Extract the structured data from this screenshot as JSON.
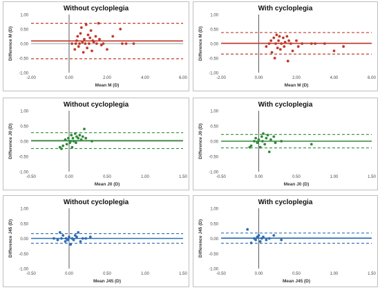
{
  "chart_data": [
    {
      "type": "scatter",
      "title": "Without cycloplegia",
      "xlabel": "Mean M (D)",
      "ylabel": "Difference M (D)",
      "xlim": [
        -2,
        6
      ],
      "ylim": [
        -1,
        1
      ],
      "xticks": [
        "-2.00",
        "0.00",
        "2.00",
        "4.00",
        "6.00"
      ],
      "yticks": [
        "-1.00",
        "-0.50",
        "0.00",
        "0.50",
        "1.00"
      ],
      "color": "#c0392b",
      "mean_diff": 0.09,
      "lower_loa": -0.52,
      "upper_loa": 0.7,
      "grid": false,
      "points": [
        [
          0.15,
          0.0
        ],
        [
          0.3,
          -0.2
        ],
        [
          0.35,
          0.0
        ],
        [
          0.4,
          0.1
        ],
        [
          0.45,
          0.25
        ],
        [
          0.5,
          -0.1
        ],
        [
          0.55,
          0.0
        ],
        [
          0.6,
          0.35
        ],
        [
          0.65,
          0.55
        ],
        [
          0.7,
          0.05
        ],
        [
          0.75,
          -0.3
        ],
        [
          0.8,
          0.15
        ],
        [
          0.85,
          0.0
        ],
        [
          0.9,
          0.65
        ],
        [
          0.95,
          -0.15
        ],
        [
          1.0,
          0.3
        ],
        [
          1.05,
          0.0
        ],
        [
          1.1,
          0.2
        ],
        [
          1.15,
          0.45
        ],
        [
          1.2,
          -0.25
        ],
        [
          1.25,
          0.1
        ],
        [
          1.3,
          0.05
        ],
        [
          1.4,
          0.25
        ],
        [
          1.45,
          0.0
        ],
        [
          1.55,
          0.7
        ],
        [
          1.6,
          0.15
        ],
        [
          1.7,
          -0.05
        ],
        [
          1.8,
          0.0
        ],
        [
          2.0,
          -0.2
        ],
        [
          2.3,
          0.25
        ],
        [
          2.7,
          0.5
        ],
        [
          2.8,
          0.0
        ],
        [
          3.0,
          0.0
        ],
        [
          3.4,
          0.0
        ]
      ]
    },
    {
      "type": "scatter",
      "title": "With cycloplegia",
      "xlabel": "Mean M (D)",
      "ylabel": "Difference M (D)",
      "xlim": [
        -2,
        6
      ],
      "ylim": [
        -1,
        1
      ],
      "xticks": [
        "-2.00",
        "0.00",
        "2.00",
        "4.00",
        "6.00"
      ],
      "yticks": [
        "-1.00",
        "-0.50",
        "0.00",
        "0.50",
        "1.00"
      ],
      "color": "#c0392b",
      "mean_diff": 0.01,
      "lower_loa": -0.36,
      "upper_loa": 0.38,
      "grid": false,
      "points": [
        [
          0.4,
          -0.1
        ],
        [
          0.55,
          0.0
        ],
        [
          0.65,
          0.1
        ],
        [
          0.7,
          -0.3
        ],
        [
          0.8,
          0.2
        ],
        [
          0.85,
          -0.5
        ],
        [
          0.9,
          0.0
        ],
        [
          0.95,
          0.3
        ],
        [
          1.0,
          -0.15
        ],
        [
          1.05,
          0.1
        ],
        [
          1.1,
          0.25
        ],
        [
          1.15,
          -0.2
        ],
        [
          1.2,
          0.0
        ],
        [
          1.3,
          0.2
        ],
        [
          1.35,
          -0.1
        ],
        [
          1.4,
          0.05
        ],
        [
          1.5,
          0.25
        ],
        [
          1.55,
          -0.6
        ],
        [
          1.6,
          0.1
        ],
        [
          1.7,
          0.0
        ],
        [
          1.8,
          -0.25
        ],
        [
          2.0,
          0.1
        ],
        [
          2.1,
          -0.1
        ],
        [
          2.3,
          0.0
        ],
        [
          2.8,
          0.0
        ],
        [
          3.0,
          0.0
        ],
        [
          3.5,
          0.0
        ],
        [
          4.0,
          -0.25
        ],
        [
          4.5,
          -0.1
        ]
      ]
    },
    {
      "type": "scatter",
      "title": "Without cycloplegia",
      "xlabel": "Mean J0 (D)",
      "ylabel": "Difference J0 (D)",
      "xlim": [
        -0.5,
        1.5
      ],
      "ylim": [
        -1,
        1
      ],
      "xticks": [
        "-0.50",
        "0.00",
        "0.50",
        "1.00",
        "1.50"
      ],
      "yticks": [
        "-1.00",
        "-0.50",
        "0.00",
        "0.50",
        "1.00"
      ],
      "color": "#2e8b3a",
      "mean_diff": 0.02,
      "lower_loa": -0.24,
      "upper_loa": 0.28,
      "grid": false,
      "points": [
        [
          -0.12,
          -0.2
        ],
        [
          -0.1,
          -0.25
        ],
        [
          -0.08,
          -0.15
        ],
        [
          -0.05,
          0.05
        ],
        [
          -0.03,
          -0.1
        ],
        [
          -0.01,
          0.1
        ],
        [
          0.01,
          -0.05
        ],
        [
          0.02,
          0.0
        ],
        [
          0.03,
          0.2
        ],
        [
          0.04,
          -0.2
        ],
        [
          0.05,
          0.1
        ],
        [
          0.06,
          0.0
        ],
        [
          0.08,
          0.25
        ],
        [
          0.09,
          -0.05
        ],
        [
          0.1,
          0.15
        ],
        [
          0.12,
          0.1
        ],
        [
          0.14,
          0.2
        ],
        [
          0.16,
          0.05
        ],
        [
          0.18,
          0.15
        ],
        [
          0.2,
          0.4
        ],
        [
          0.22,
          0.1
        ],
        [
          0.3,
          0.0
        ]
      ]
    },
    {
      "type": "scatter",
      "title": "With cycloplegia",
      "xlabel": "Mean J0 (D)",
      "ylabel": "Difference J0 (D)",
      "xlim": [
        -0.5,
        1.5
      ],
      "ylim": [
        -1,
        1
      ],
      "xticks": [
        "-0.50",
        "0.00",
        "0.50",
        "1.00",
        "1.50"
      ],
      "yticks": [
        "-1.00",
        "-0.50",
        "0.00",
        "0.50",
        "1.00"
      ],
      "color": "#2e8b3a",
      "mean_diff": 0.0,
      "lower_loa": -0.22,
      "upper_loa": 0.22,
      "grid": false,
      "points": [
        [
          -0.12,
          -0.2
        ],
        [
          -0.1,
          -0.15
        ],
        [
          -0.06,
          0.0
        ],
        [
          -0.04,
          0.1
        ],
        [
          -0.02,
          -0.05
        ],
        [
          0.0,
          0.05
        ],
        [
          0.02,
          -0.2
        ],
        [
          0.04,
          0.15
        ],
        [
          0.05,
          0.0
        ],
        [
          0.06,
          0.25
        ],
        [
          0.08,
          -0.1
        ],
        [
          0.1,
          0.1
        ],
        [
          0.12,
          0.2
        ],
        [
          0.14,
          -0.35
        ],
        [
          0.16,
          0.05
        ],
        [
          0.2,
          0.15
        ],
        [
          0.22,
          -0.05
        ],
        [
          0.3,
          0.0
        ],
        [
          0.7,
          -0.1
        ]
      ]
    },
    {
      "type": "scatter",
      "title": "Without cycloplegia",
      "xlabel": "Mean J45 (D)",
      "ylabel": "Difference J45 (D)",
      "xlim": [
        -0.5,
        1.5
      ],
      "ylim": [
        -1,
        1
      ],
      "xticks": [
        "-0.50",
        "0.00",
        "0.50",
        "1.00",
        "1.50"
      ],
      "yticks": [
        "-1.00",
        "-0.50",
        "0.00",
        "0.50",
        "1.00"
      ],
      "color": "#2f6db5",
      "mean_diff": 0.0,
      "lower_loa": -0.16,
      "upper_loa": 0.16,
      "grid": false,
      "points": [
        [
          -0.2,
          0.0
        ],
        [
          -0.15,
          -0.05
        ],
        [
          -0.12,
          0.2
        ],
        [
          -0.1,
          0.0
        ],
        [
          -0.08,
          0.1
        ],
        [
          -0.05,
          -0.1
        ],
        [
          -0.04,
          0.0
        ],
        [
          -0.02,
          -0.05
        ],
        [
          0.0,
          0.05
        ],
        [
          0.02,
          -0.2
        ],
        [
          0.04,
          0.0
        ],
        [
          0.06,
          -0.05
        ],
        [
          0.08,
          0.1
        ],
        [
          0.1,
          0.05
        ],
        [
          0.12,
          0.2
        ],
        [
          0.15,
          -0.1
        ],
        [
          0.18,
          0.0
        ],
        [
          0.22,
          0.0
        ],
        [
          0.28,
          0.05
        ]
      ]
    },
    {
      "type": "scatter",
      "title": "With cycloplegia",
      "xlabel": "Mean J45 (D)",
      "ylabel": "Difference J45 (D)",
      "xlim": [
        -0.5,
        1.5
      ],
      "ylim": [
        -1,
        1
      ],
      "xticks": [
        "-0.50",
        "0.00",
        "0.50",
        "1.00",
        "1.50"
      ],
      "yticks": [
        "-1.00",
        "-0.50",
        "0.00",
        "0.50",
        "1.00"
      ],
      "color": "#2f6db5",
      "mean_diff": 0.01,
      "lower_loa": -0.16,
      "upper_loa": 0.18,
      "grid": false,
      "points": [
        [
          -0.15,
          0.3
        ],
        [
          -0.1,
          -0.15
        ],
        [
          -0.06,
          0.0
        ],
        [
          -0.04,
          -0.05
        ],
        [
          -0.02,
          0.05
        ],
        [
          0.0,
          0.1
        ],
        [
          0.02,
          -0.1
        ],
        [
          0.04,
          0.0
        ],
        [
          0.06,
          0.05
        ],
        [
          0.1,
          -0.05
        ],
        [
          0.14,
          0.0
        ],
        [
          0.2,
          0.1
        ],
        [
          0.3,
          -0.05
        ]
      ]
    }
  ]
}
